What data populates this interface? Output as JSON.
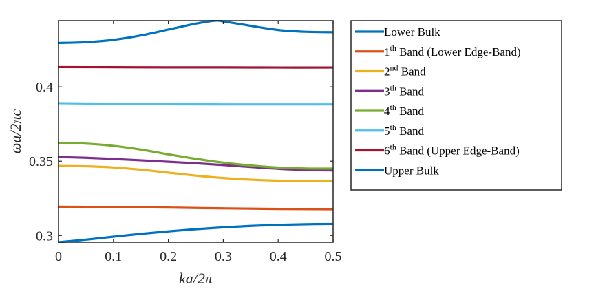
{
  "chart_data": {
    "type": "line",
    "xlabel": "ka/2π",
    "ylabel": "ωa/2πc",
    "xlim": [
      0,
      0.5
    ],
    "ylim": [
      0.2955,
      0.4445
    ],
    "xticks": [
      0,
      0.1,
      0.2,
      0.3,
      0.4,
      0.5
    ],
    "xtick_labels": [
      "0",
      "0.1",
      "0.2",
      "0.3",
      "0.4",
      "0.5"
    ],
    "yticks": [
      0.3,
      0.35,
      0.4
    ],
    "ytick_labels": [
      "0.3",
      "0.35",
      "0.4"
    ],
    "legend_position": "outside-right",
    "series": [
      {
        "name": "Lower Bulk",
        "label_main": "Lower Bulk",
        "label_sup": "",
        "label_rest": "",
        "color": "#0072BD",
        "x": [
          0,
          0.05,
          0.1,
          0.15,
          0.2,
          0.25,
          0.3,
          0.35,
          0.4,
          0.45,
          0.5
        ],
        "y": [
          0.2955,
          0.2972,
          0.2992,
          0.3011,
          0.3028,
          0.3043,
          0.3055,
          0.3065,
          0.3072,
          0.3076,
          0.3078
        ]
      },
      {
        "name": "1th Band (Lower Edge-Band)",
        "label_main": "1",
        "label_sup": "th",
        "label_rest": " Band (Lower Edge-Band)",
        "color": "#D95319",
        "x": [
          0,
          0.1,
          0.2,
          0.3,
          0.4,
          0.5
        ],
        "y": [
          0.3194,
          0.3192,
          0.3188,
          0.3183,
          0.3179,
          0.3177
        ]
      },
      {
        "name": "2nd Band",
        "label_main": "2",
        "label_sup": "nd",
        "label_rest": " Band",
        "color": "#EDB120",
        "x": [
          0,
          0.05,
          0.1,
          0.15,
          0.2,
          0.25,
          0.3,
          0.35,
          0.4,
          0.45,
          0.5
        ],
        "y": [
          0.3468,
          0.3466,
          0.3458,
          0.3443,
          0.3423,
          0.3403,
          0.3387,
          0.3376,
          0.3369,
          0.3366,
          0.3365
        ]
      },
      {
        "name": "3th Band",
        "label_main": "3",
        "label_sup": "th",
        "label_rest": " Band",
        "color": "#7E2F8E",
        "x": [
          0,
          0.05,
          0.1,
          0.15,
          0.2,
          0.25,
          0.3,
          0.35,
          0.4,
          0.45,
          0.5
        ],
        "y": [
          0.3528,
          0.3523,
          0.3515,
          0.3506,
          0.3496,
          0.3486,
          0.3474,
          0.3461,
          0.3449,
          0.3441,
          0.3438
        ]
      },
      {
        "name": "4th Band",
        "label_main": "4",
        "label_sup": "th",
        "label_rest": " Band",
        "color": "#77AC30",
        "x": [
          0,
          0.05,
          0.1,
          0.15,
          0.2,
          0.25,
          0.3,
          0.35,
          0.4,
          0.45,
          0.5
        ],
        "y": [
          0.3622,
          0.3618,
          0.3603,
          0.3578,
          0.3546,
          0.3516,
          0.349,
          0.3471,
          0.3457,
          0.3451,
          0.345
        ]
      },
      {
        "name": "5th Band",
        "label_main": "5",
        "label_sup": "th",
        "label_rest": " Band",
        "color": "#4DBEEE",
        "x": [
          0,
          0.1,
          0.2,
          0.3,
          0.4,
          0.5
        ],
        "y": [
          0.389,
          0.3886,
          0.3883,
          0.3882,
          0.3882,
          0.3882
        ]
      },
      {
        "name": "6th Band (Upper Edge-Band)",
        "label_main": "6",
        "label_sup": "th",
        "label_rest": " Band (Upper Edge-Band)",
        "color": "#A2142F",
        "x": [
          0,
          0.1,
          0.2,
          0.3,
          0.4,
          0.5
        ],
        "y": [
          0.4133,
          0.4132,
          0.4131,
          0.4131,
          0.413,
          0.413
        ]
      },
      {
        "name": "Upper Bulk",
        "label_main": "Upper Bulk",
        "label_sup": "",
        "label_rest": "",
        "color": "#0072BD",
        "x": [
          0,
          0.05,
          0.1,
          0.15,
          0.2,
          0.25,
          0.285,
          0.3,
          0.35,
          0.4,
          0.45,
          0.5
        ],
        "y": [
          0.4295,
          0.43,
          0.4316,
          0.4345,
          0.4385,
          0.4425,
          0.4445,
          0.444,
          0.441,
          0.4382,
          0.437,
          0.4367
        ]
      }
    ]
  }
}
